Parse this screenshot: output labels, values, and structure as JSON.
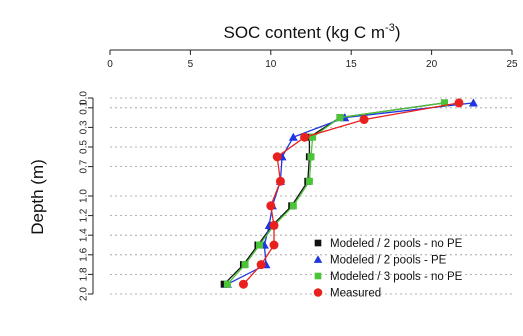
{
  "chart_data": {
    "type": "line",
    "title": "",
    "x_axis": {
      "label_prefix": "SOC content (kg C m",
      "label_superscript": "-3",
      "label_suffix": ")",
      "position": "top",
      "range": [
        0,
        25
      ],
      "ticks": [
        0,
        5,
        10,
        15,
        20,
        25
      ],
      "tick_labels": [
        "0",
        "5",
        "10",
        "15",
        "20",
        "25"
      ]
    },
    "y_axis": {
      "label": "Depth (m)",
      "inverted": true,
      "range": [
        0.0,
        2.0
      ],
      "ticks": [
        0.0,
        0.1,
        0.3,
        0.5,
        0.7,
        1.0,
        1.2,
        1.4,
        1.6,
        1.8,
        2.0
      ],
      "tick_labels": [
        "0.0",
        "0.1",
        "0.3",
        "0.5",
        "0.7",
        "1.0",
        "1.2",
        "1.4",
        "1.6",
        "1.8",
        "2.0"
      ]
    },
    "grid": "horizontal dotted",
    "legend_position": "bottom-right",
    "series": [
      {
        "name": "Modeled / 2 pools - no PE",
        "marker": "square",
        "color": "#111111",
        "points": [
          [
            20.8,
            0.05
          ],
          [
            14.3,
            0.2
          ],
          [
            12.4,
            0.4
          ],
          [
            12.4,
            0.6
          ],
          [
            12.3,
            0.85
          ],
          [
            11.3,
            1.1
          ],
          [
            10.1,
            1.3
          ],
          [
            9.2,
            1.5
          ],
          [
            8.3,
            1.7
          ],
          [
            7.1,
            1.9
          ]
        ]
      },
      {
        "name": "Modeled / 2 pools - PE",
        "marker": "triangle",
        "color": "#1f35e0",
        "points": [
          [
            22.6,
            0.05
          ],
          [
            14.6,
            0.2
          ],
          [
            11.4,
            0.4
          ],
          [
            10.7,
            0.6
          ],
          [
            10.6,
            0.85
          ],
          [
            10.1,
            1.1
          ],
          [
            9.9,
            1.3
          ],
          [
            9.6,
            1.5
          ],
          [
            9.7,
            1.7
          ],
          [
            7.3,
            1.9
          ]
        ]
      },
      {
        "name": "Modeled / 3 pools - no PE",
        "marker": "square",
        "color": "#4cc43a",
        "points": [
          [
            20.8,
            0.05
          ],
          [
            14.3,
            0.2
          ],
          [
            12.6,
            0.4
          ],
          [
            12.5,
            0.6
          ],
          [
            12.4,
            0.85
          ],
          [
            11.4,
            1.1
          ],
          [
            10.2,
            1.3
          ],
          [
            9.3,
            1.5
          ],
          [
            8.4,
            1.7
          ],
          [
            7.3,
            1.9
          ]
        ]
      },
      {
        "name": "Measured",
        "marker": "circle",
        "color": "#e8201e",
        "points": [
          [
            21.7,
            0.05
          ],
          [
            15.8,
            0.22
          ],
          [
            12.1,
            0.4
          ],
          [
            10.4,
            0.6
          ],
          [
            10.6,
            0.85
          ],
          [
            10.0,
            1.1
          ],
          [
            10.2,
            1.3
          ],
          [
            10.2,
            1.5
          ],
          [
            9.4,
            1.7
          ],
          [
            8.3,
            1.9
          ]
        ]
      }
    ]
  }
}
